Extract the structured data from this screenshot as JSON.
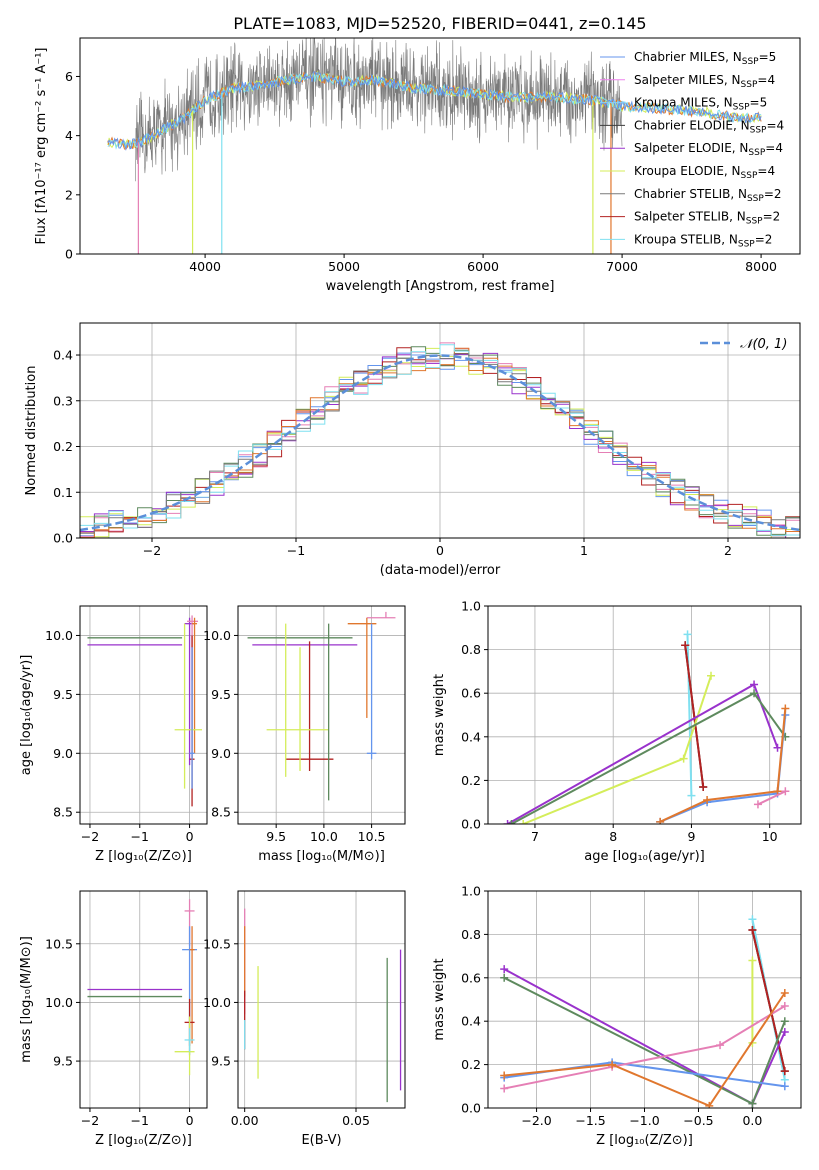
{
  "title": "PLATE=1083, MJD=52520, FIBERID=0441, z=0.145",
  "colors": {
    "Chabrier MILES": "#6495ed",
    "Salpeter MILES": "#ee82ee",
    "Kroupa MILES": "#87cefa",
    "Chabrier ELODIE": "#3d3d3d",
    "Salpeter ELODIE": "#9932cc",
    "Kroupa ELODIE": "#d4ed5a",
    "Chabrier STELIB": "#7a7a7a",
    "Salpeter STELIB": "#b22222",
    "Kroupa STELIB": "#7fe0f0",
    "gaussian": "#5b8fd9",
    "extra_green": "#5e8a5e",
    "extra_orange": "#e0772e",
    "extra_pink": "#e57fb5"
  },
  "chart_data": [
    {
      "id": "spectrum",
      "type": "line",
      "xlabel": "wavelength [Angstrom, rest frame]",
      "ylabel": "Flux [fλ10⁻¹⁷ erg cm⁻² s⁻¹ A⁻¹]",
      "xlim": [
        3100,
        8280
      ],
      "ylim": [
        0,
        7.3
      ],
      "xticks": [
        4000,
        5000,
        6000,
        7000,
        8000
      ],
      "yticks": [
        0,
        2,
        4,
        6
      ],
      "legend_position": "top-right",
      "legend": [
        {
          "label": "Chabrier MILES, N",
          "sub": "SSP",
          "rest": "=5"
        },
        {
          "label": "Salpeter MILES, N",
          "sub": "SSP",
          "rest": "=4"
        },
        {
          "label": "Kroupa MILES, N",
          "sub": "SSP",
          "rest": "=5"
        },
        {
          "label": "Chabrier ELODIE, N",
          "sub": "SSP",
          "rest": "=4"
        },
        {
          "label": "Salpeter ELODIE, N",
          "sub": "SSP",
          "rest": "=4"
        },
        {
          "label": "Kroupa ELODIE, N",
          "sub": "SSP",
          "rest": "=4"
        },
        {
          "label": "Chabrier STELIB, N",
          "sub": "SSP",
          "rest": "=2"
        },
        {
          "label": "Salpeter STELIB, N",
          "sub": "SSP",
          "rest": "=2"
        },
        {
          "label": "Kroupa STELIB, N",
          "sub": "SSP",
          "rest": "=2"
        }
      ],
      "continuum": [
        [
          3300,
          3.8
        ],
        [
          3450,
          3.7
        ],
        [
          3550,
          3.8
        ],
        [
          3700,
          4.2
        ],
        [
          3850,
          4.6
        ],
        [
          4000,
          5.2
        ],
        [
          4200,
          5.6
        ],
        [
          4400,
          5.7
        ],
        [
          4600,
          5.9
        ],
        [
          4800,
          6.0
        ],
        [
          5000,
          5.8
        ],
        [
          5200,
          5.9
        ],
        [
          5500,
          5.6
        ],
        [
          5800,
          5.5
        ],
        [
          6000,
          5.4
        ],
        [
          6200,
          5.3
        ],
        [
          6500,
          5.3
        ],
        [
          6800,
          5.2
        ],
        [
          7000,
          5.0
        ],
        [
          7300,
          4.9
        ],
        [
          7600,
          4.8
        ],
        [
          7800,
          4.6
        ],
        [
          8000,
          4.6
        ]
      ],
      "observed_range": [
        3500,
        7000
      ],
      "observed_noise_amplitude": 2.6
    },
    {
      "id": "residuals",
      "type": "histogram",
      "xlabel": "(data-model)/error",
      "ylabel": "Normed distribution",
      "xlim": [
        -2.5,
        2.5
      ],
      "ylim": [
        0,
        0.47
      ],
      "xticks": [
        -2,
        -1,
        0,
        1,
        2
      ],
      "yticks": [
        0.0,
        0.1,
        0.2,
        0.3,
        0.4
      ],
      "grid": true,
      "legend": "𝒩(0, 1)",
      "legend_position": "top-right",
      "bin_width": 0.1,
      "bins_from": -2.5,
      "series_colors": [
        "#6495ed",
        "#e57fb5",
        "#d4ed5a",
        "#9932cc",
        "#b22222",
        "#5e8a5e",
        "#e0772e",
        "#7fe0f0",
        "#7a7a7a"
      ]
    },
    {
      "id": "age_vs_Z",
      "type": "errorbar",
      "xlabel": "Z [log₁₀(Z/Z⊙)]",
      "ylabel": "age  [log₁₀(age/yr)]",
      "xlim": [
        -2.2,
        0.35
      ],
      "ylim": [
        8.4,
        10.25
      ],
      "xticks": [
        -2,
        -1,
        0
      ],
      "yticks": [
        8.5,
        9.0,
        9.5,
        10.0
      ],
      "points": [
        {
          "x": -0.6,
          "y": 9.98,
          "xerr": [
            1.45,
            0.45
          ],
          "yerr": [
            0,
            0
          ],
          "c": "#5e8a5e"
        },
        {
          "x": -0.6,
          "y": 9.92,
          "xerr": [
            1.45,
            0.45
          ],
          "yerr": [
            0,
            0
          ],
          "c": "#9932cc"
        },
        {
          "x": 0.0,
          "y": 10.1,
          "xerr": [
            0.1,
            0.1
          ],
          "yerr": [
            1.2,
            0.05
          ],
          "c": "#9932cc"
        },
        {
          "x": 0.05,
          "y": 10.12,
          "xerr": [
            0.1,
            0.12
          ],
          "yerr": [
            0.5,
            0.05
          ],
          "c": "#e57fb5"
        },
        {
          "x": 0.1,
          "y": 10.1,
          "xerr": [
            0.05,
            0.05
          ],
          "yerr": [
            1.1,
            0.05
          ],
          "c": "#e0772e"
        },
        {
          "x": 0.05,
          "y": 8.95,
          "xerr": [
            0.05,
            0.05
          ],
          "yerr": [
            0.4,
            1.05
          ],
          "c": "#b22222"
        },
        {
          "x": -0.1,
          "y": 9.2,
          "xerr": [
            0.2,
            0.35
          ],
          "yerr": [
            0.5,
            0.9
          ],
          "c": "#d4ed5a"
        },
        {
          "x": 0.05,
          "y": 9.0,
          "xerr": [
            0.05,
            0.05
          ],
          "yerr": [
            0.3,
            0.9
          ],
          "c": "#6495ed"
        }
      ]
    },
    {
      "id": "age_vs_mass",
      "type": "errorbar",
      "xlabel": "mass [log₁₀(M/M⊙)]",
      "ylabel": "",
      "xlim": [
        9.1,
        10.85
      ],
      "ylim": [
        8.4,
        10.25
      ],
      "xticks": [
        9.5,
        10.0,
        10.5
      ],
      "yticks": [
        8.5,
        9.0,
        9.5,
        10.0
      ],
      "points": [
        {
          "x": 9.9,
          "y": 9.98,
          "xerr": [
            0.7,
            0.4
          ],
          "yerr": [
            0,
            0
          ],
          "c": "#5e8a5e"
        },
        {
          "x": 9.9,
          "y": 9.92,
          "xerr": [
            0.65,
            0.45
          ],
          "yerr": [
            0,
            0
          ],
          "c": "#9932cc"
        },
        {
          "x": 10.65,
          "y": 10.15,
          "xerr": [
            0.2,
            0.1
          ],
          "yerr": [
            0,
            0.05
          ],
          "c": "#e57fb5"
        },
        {
          "x": 10.45,
          "y": 10.1,
          "xerr": [
            0.2,
            0.1
          ],
          "yerr": [
            0.8,
            0.05
          ],
          "c": "#e0772e"
        },
        {
          "x": 9.85,
          "y": 8.95,
          "xerr": [
            0.25,
            0.25
          ],
          "yerr": [
            0.1,
            1.0
          ],
          "c": "#b22222"
        },
        {
          "x": 9.75,
          "y": 9.2,
          "xerr": [
            0.35,
            0.3
          ],
          "yerr": [
            0.35,
            0.7
          ],
          "c": "#d4ed5a"
        },
        {
          "x": 10.5,
          "y": 9.0,
          "xerr": [
            0.05,
            0.05
          ],
          "yerr": [
            0.05,
            1.1
          ],
          "c": "#6495ed"
        },
        {
          "x": 10.05,
          "y": 9.5,
          "xerr": [
            0,
            0
          ],
          "yerr": [
            0.9,
            0.6
          ],
          "c": "#5e8a5e"
        },
        {
          "x": 9.6,
          "y": 9.5,
          "xerr": [
            0,
            0
          ],
          "yerr": [
            0.7,
            0.6
          ],
          "c": "#d4ed5a"
        }
      ]
    },
    {
      "id": "mw_vs_age",
      "type": "line",
      "xlabel": "age  [log₁₀(age/yr)]",
      "ylabel": "mass weight",
      "xlim": [
        6.4,
        10.4
      ],
      "ylim": [
        0,
        1.0
      ],
      "xticks": [
        7,
        8,
        9,
        10
      ],
      "yticks": [
        0.0,
        0.2,
        0.4,
        0.6,
        0.8,
        1.0
      ],
      "grid": true,
      "series": [
        {
          "c": "#7fe0f0",
          "x": [
            8.95,
            9.0
          ],
          "y": [
            0.87,
            0.13
          ]
        },
        {
          "c": "#3d3d3d",
          "x": [
            8.92,
            9.15
          ],
          "y": [
            0.82,
            0.17
          ]
        },
        {
          "c": "#b22222",
          "x": [
            8.92,
            9.15
          ],
          "y": [
            0.82,
            0.17
          ]
        },
        {
          "c": "#d4ed5a",
          "x": [
            6.85,
            8.9,
            9.25
          ],
          "y": [
            0.0,
            0.3,
            0.68
          ]
        },
        {
          "c": "#9932cc",
          "x": [
            6.65,
            9.8,
            10.1
          ],
          "y": [
            0.0,
            0.64,
            0.35
          ]
        },
        {
          "c": "#5e8a5e",
          "x": [
            6.7,
            9.8,
            10.2
          ],
          "y": [
            0.0,
            0.6,
            0.4
          ]
        },
        {
          "c": "#6495ed",
          "x": [
            8.6,
            9.2,
            10.1,
            10.2
          ],
          "y": [
            0.01,
            0.1,
            0.14,
            0.5
          ]
        },
        {
          "c": "#e0772e",
          "x": [
            8.6,
            9.2,
            10.1,
            10.2
          ],
          "y": [
            0.01,
            0.11,
            0.15,
            0.53
          ]
        },
        {
          "c": "#e57fb5",
          "x": [
            9.85,
            10.2
          ],
          "y": [
            0.09,
            0.15
          ]
        }
      ]
    },
    {
      "id": "mass_vs_Z",
      "type": "errorbar",
      "xlabel": "Z [log₁₀(Z/Z⊙)]",
      "ylabel": "mass [log₁₀(M/M⊙)]",
      "xlim": [
        -2.2,
        0.35
      ],
      "ylim": [
        9.1,
        10.95
      ],
      "xticks": [
        -2,
        -1,
        0
      ],
      "yticks": [
        9.5,
        10.0,
        10.5
      ],
      "points": [
        {
          "x": -0.6,
          "y": 10.11,
          "xerr": [
            1.45,
            0.45
          ],
          "yerr": [
            0,
            0
          ],
          "c": "#9932cc"
        },
        {
          "x": -0.6,
          "y": 10.05,
          "xerr": [
            1.45,
            0.45
          ],
          "yerr": [
            0,
            0
          ],
          "c": "#5e8a5e"
        },
        {
          "x": 0.0,
          "y": 10.78,
          "xerr": [
            0.1,
            0.1
          ],
          "yerr": [
            0.3,
            0.1
          ],
          "c": "#e57fb5"
        },
        {
          "x": 0.0,
          "y": 10.45,
          "xerr": [
            0.15,
            0.15
          ],
          "yerr": [
            0.9,
            0.2
          ],
          "c": "#6495ed"
        },
        {
          "x": 0.05,
          "y": 10.45,
          "xerr": [
            0.05,
            0.05
          ],
          "yerr": [
            0.8,
            0.2
          ],
          "c": "#e0772e"
        },
        {
          "x": 0.0,
          "y": 9.83,
          "xerr": [
            0.1,
            0.1
          ],
          "yerr": [
            0.2,
            0.2
          ],
          "c": "#b22222"
        },
        {
          "x": 0.0,
          "y": 9.58,
          "xerr": [
            0.3,
            0.1
          ],
          "yerr": [
            0.2,
            0.3
          ],
          "c": "#d4ed5a"
        },
        {
          "x": 0.0,
          "y": 9.68,
          "xerr": [
            0.1,
            0.1
          ],
          "yerr": [
            0.1,
            0.1
          ],
          "c": "#7fe0f0"
        }
      ]
    },
    {
      "id": "mass_vs_ebv",
      "type": "errorbar",
      "xlabel": "E(B-V)",
      "ylabel": "",
      "xlim": [
        -0.003,
        0.072
      ],
      "ylim": [
        9.1,
        10.95
      ],
      "xticks": [
        0.0,
        0.05
      ],
      "yticks": [
        9.5,
        10.0,
        10.5
      ],
      "points": [
        {
          "x": 0.0,
          "y": 10.45,
          "xerr": [
            0,
            0
          ],
          "yerr": [
            0.55,
            0.35
          ],
          "c": "#e57fb5"
        },
        {
          "x": 0.0,
          "y": 10.35,
          "xerr": [
            0,
            0
          ],
          "yerr": [
            0.3,
            0.3
          ],
          "c": "#e0772e"
        },
        {
          "x": 0.0,
          "y": 9.9,
          "xerr": [
            0,
            0
          ],
          "yerr": [
            0.3,
            0.2
          ],
          "c": "#b22222"
        },
        {
          "x": 0.0,
          "y": 9.75,
          "xerr": [
            0,
            0
          ],
          "yerr": [
            0.15,
            0.1
          ],
          "c": "#7fe0f0"
        },
        {
          "x": 0.006,
          "y": 9.85,
          "xerr": [
            0,
            0
          ],
          "yerr": [
            0.5,
            0.46
          ],
          "c": "#d4ed5a"
        },
        {
          "x": 0.064,
          "y": 9.85,
          "xerr": [
            0,
            0
          ],
          "yerr": [
            0.7,
            0.53
          ],
          "c": "#5e8a5e"
        },
        {
          "x": 0.07,
          "y": 9.85,
          "xerr": [
            0,
            0
          ],
          "yerr": [
            0.6,
            0.6
          ],
          "c": "#9932cc"
        }
      ]
    },
    {
      "id": "mw_vs_Z",
      "type": "line",
      "xlabel": "Z [log₁₀(Z/Z⊙)]",
      "ylabel": "mass weight",
      "xlim": [
        -2.45,
        0.45
      ],
      "ylim": [
        0,
        1.0
      ],
      "xticks": [
        -2.0,
        -1.5,
        -1.0,
        -0.5,
        0.0
      ],
      "yticks": [
        0.0,
        0.2,
        0.4,
        0.6,
        0.8,
        1.0
      ],
      "grid": true,
      "series": [
        {
          "c": "#7fe0f0",
          "x": [
            0.0,
            0.3
          ],
          "y": [
            0.87,
            0.13
          ]
        },
        {
          "c": "#3d3d3d",
          "x": [
            0.0,
            0.3
          ],
          "y": [
            0.82,
            0.17
          ]
        },
        {
          "c": "#b22222",
          "x": [
            0.0,
            0.3
          ],
          "y": [
            0.82,
            0.17
          ]
        },
        {
          "c": "#d4ed5a",
          "x": [
            0.0,
            0.0
          ],
          "y": [
            0.68,
            0.3
          ]
        },
        {
          "c": "#9932cc",
          "x": [
            -2.3,
            0.0,
            0.3
          ],
          "y": [
            0.64,
            0.02,
            0.35
          ]
        },
        {
          "c": "#5e8a5e",
          "x": [
            -2.3,
            0.0,
            0.3
          ],
          "y": [
            0.6,
            0.02,
            0.4
          ]
        },
        {
          "c": "#6495ed",
          "x": [
            -2.3,
            -1.3,
            0.3
          ],
          "y": [
            0.14,
            0.21,
            0.1
          ]
        },
        {
          "c": "#e57fb5",
          "x": [
            -2.3,
            -1.3,
            -0.3,
            0.3
          ],
          "y": [
            0.09,
            0.19,
            0.29,
            0.47
          ]
        },
        {
          "c": "#e0772e",
          "x": [
            -2.3,
            -1.3,
            -0.4,
            0.3
          ],
          "y": [
            0.15,
            0.2,
            0.01,
            0.53
          ]
        }
      ]
    }
  ]
}
